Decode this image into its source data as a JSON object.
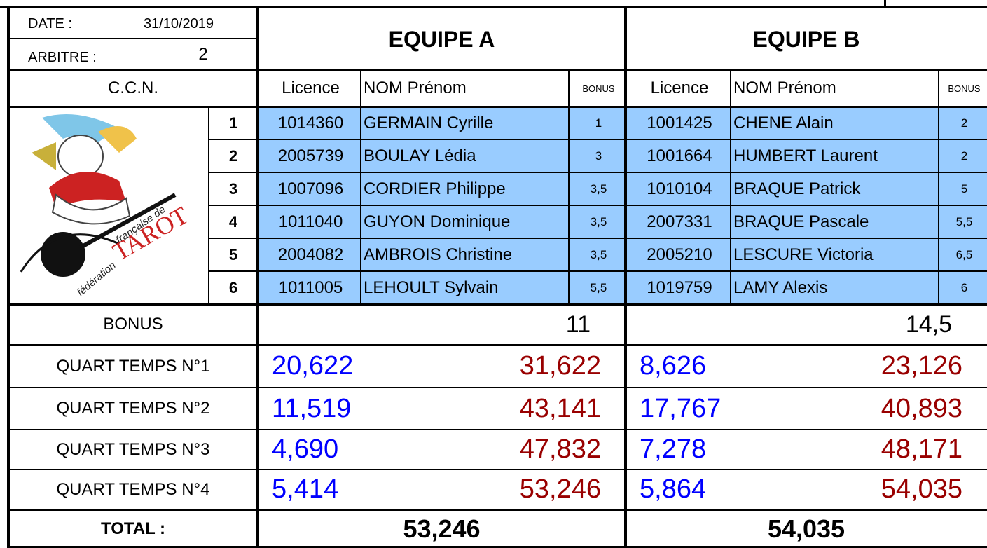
{
  "header": {
    "date_label": "DATE :",
    "date": "31/10/2019",
    "referee_label": "ARBITRE :",
    "referee": "2",
    "ccn": "C.C.N."
  },
  "logo": {
    "line1": "fédération",
    "line2": "française de",
    "line3": "TAROT"
  },
  "ranks": [
    "1",
    "2",
    "3",
    "4",
    "5",
    "6"
  ],
  "row_labels": {
    "bonus": "BONUS",
    "quarters": [
      "QUART TEMPS N°1",
      "QUART TEMPS N°2",
      "QUART TEMPS N°3",
      "QUART TEMPS N°4"
    ],
    "total": "TOTAL :"
  },
  "teams": [
    {
      "name": "EQUIPE A",
      "columns": [
        "Licence",
        "NOM Prénom",
        "BONUS"
      ],
      "players": [
        [
          "1014360",
          "GERMAIN Cyrille",
          "1"
        ],
        [
          "2005739",
          "BOULAY Lédia",
          "3"
        ],
        [
          "1007096",
          "CORDIER Philippe",
          "3,5"
        ],
        [
          "1011040",
          "GUYON Dominique",
          "3,5"
        ],
        [
          "2004082",
          "AMBROIS Christine",
          "3,5"
        ],
        [
          "1011005",
          "LEHOULT Sylvain",
          "5,5"
        ]
      ],
      "bonus_total": "11",
      "quarters": [
        [
          "20,622",
          "31,622"
        ],
        [
          "11,519",
          "43,141"
        ],
        [
          "4,690",
          "47,832"
        ],
        [
          "5,414",
          "53,246"
        ]
      ],
      "total": "53,246"
    },
    {
      "name": "EQUIPE B",
      "columns": [
        "Licence",
        "NOM Prénom",
        "BONUS"
      ],
      "players": [
        [
          "1001425",
          "CHENE Alain",
          "2"
        ],
        [
          "1001664",
          "HUMBERT Laurent",
          "2"
        ],
        [
          "1010104",
          "BRAQUE Patrick",
          "5"
        ],
        [
          "2007331",
          "BRAQUE Pascale",
          "5,5"
        ],
        [
          "2005210",
          "LESCURE Victoria",
          "6,5"
        ],
        [
          "1019759",
          "LAMY Alexis",
          "6"
        ]
      ],
      "bonus_total": "14,5",
      "quarters": [
        [
          "8,626",
          "23,126"
        ],
        [
          "17,767",
          "40,893"
        ],
        [
          "7,278",
          "48,171"
        ],
        [
          "5,864",
          "54,035"
        ]
      ],
      "total": "54,035"
    }
  ]
}
